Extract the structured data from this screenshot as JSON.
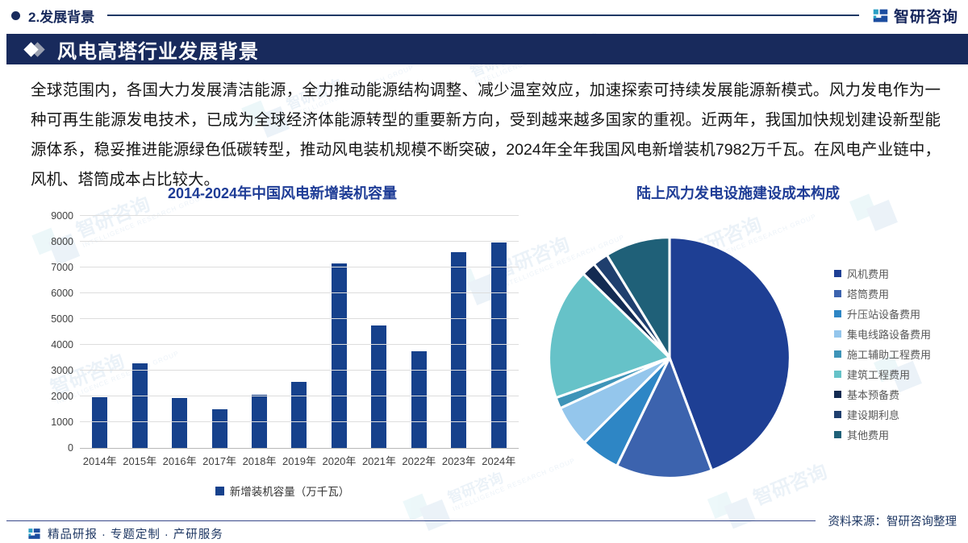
{
  "header": {
    "section_label": "2.发展背景",
    "logo_text": "智研咨询",
    "banner_title": "风电高塔行业发展背景"
  },
  "paragraph": "全球范围内，各国大力发展清洁能源，全力推动能源结构调整、减少温室效应，加速探索可持续发展能源新模式。风力发电作为一种可再生能源发电技术，已成为全球经济体能源转型的重要新方向，受到越来越多国家的重视。近两年，我国加快规划建设新型能源体系，稳妥推进能源绿色低碳转型，推动风电装机规模不断突破，2024年全年我国风电新增装机7982万千瓦。在风电产业链中，风机、塔筒成本占比较大。",
  "watermark": {
    "text": "智研咨询",
    "subtext": "INTELLIGENCE RESEARCH GROUP"
  },
  "colors": {
    "navy": "#182a5c",
    "title_blue": "#1e3c96",
    "bar_blue": "#16418c",
    "footer_text": "#1f3864"
  },
  "chart_data": [
    {
      "type": "bar",
      "title": "2014-2024年中国风电新增装机容量",
      "categories": [
        "2014年",
        "2015年",
        "2016年",
        "2017年",
        "2018年",
        "2019年",
        "2020年",
        "2021年",
        "2022年",
        "2023年",
        "2024年"
      ],
      "values": [
        1981,
        3297,
        1930,
        1503,
        2059,
        2574,
        7167,
        4757,
        3763,
        7590,
        7982
      ],
      "series_name": "新增装机容量（万千瓦）",
      "unit": "万千瓦",
      "ylim": [
        0,
        9000
      ],
      "ytick_step": 1000,
      "grid": true,
      "legend_position": "bottom",
      "bar_color": "#16418c"
    },
    {
      "type": "pie",
      "title": "陆上风力发电设施建设成本构成",
      "labels": [
        "风机费用",
        "塔筒费用",
        "升压站设备费用",
        "集电线路设备费用",
        "施工辅助工程费用",
        "建筑工程费用",
        "基本预备费",
        "建设期利息",
        "其他费用"
      ],
      "values": [
        44.3,
        12.9,
        5.3,
        5.6,
        1.5,
        17.7,
        1.9,
        2.1,
        8.7
      ],
      "unit": "%",
      "colors": [
        "#1e3f94",
        "#3c63ae",
        "#2e86c5",
        "#94c6ec",
        "#3e94b8",
        "#66c2c8",
        "#132b52",
        "#1f3f6e",
        "#1f6078"
      ],
      "legend_position": "right",
      "start_angle": "12-oclock-clockwise"
    }
  ],
  "footer": {
    "services_text": "精品研报 · 专题定制 · 产研服务",
    "source_text": "资料来源：智研咨询整理"
  }
}
